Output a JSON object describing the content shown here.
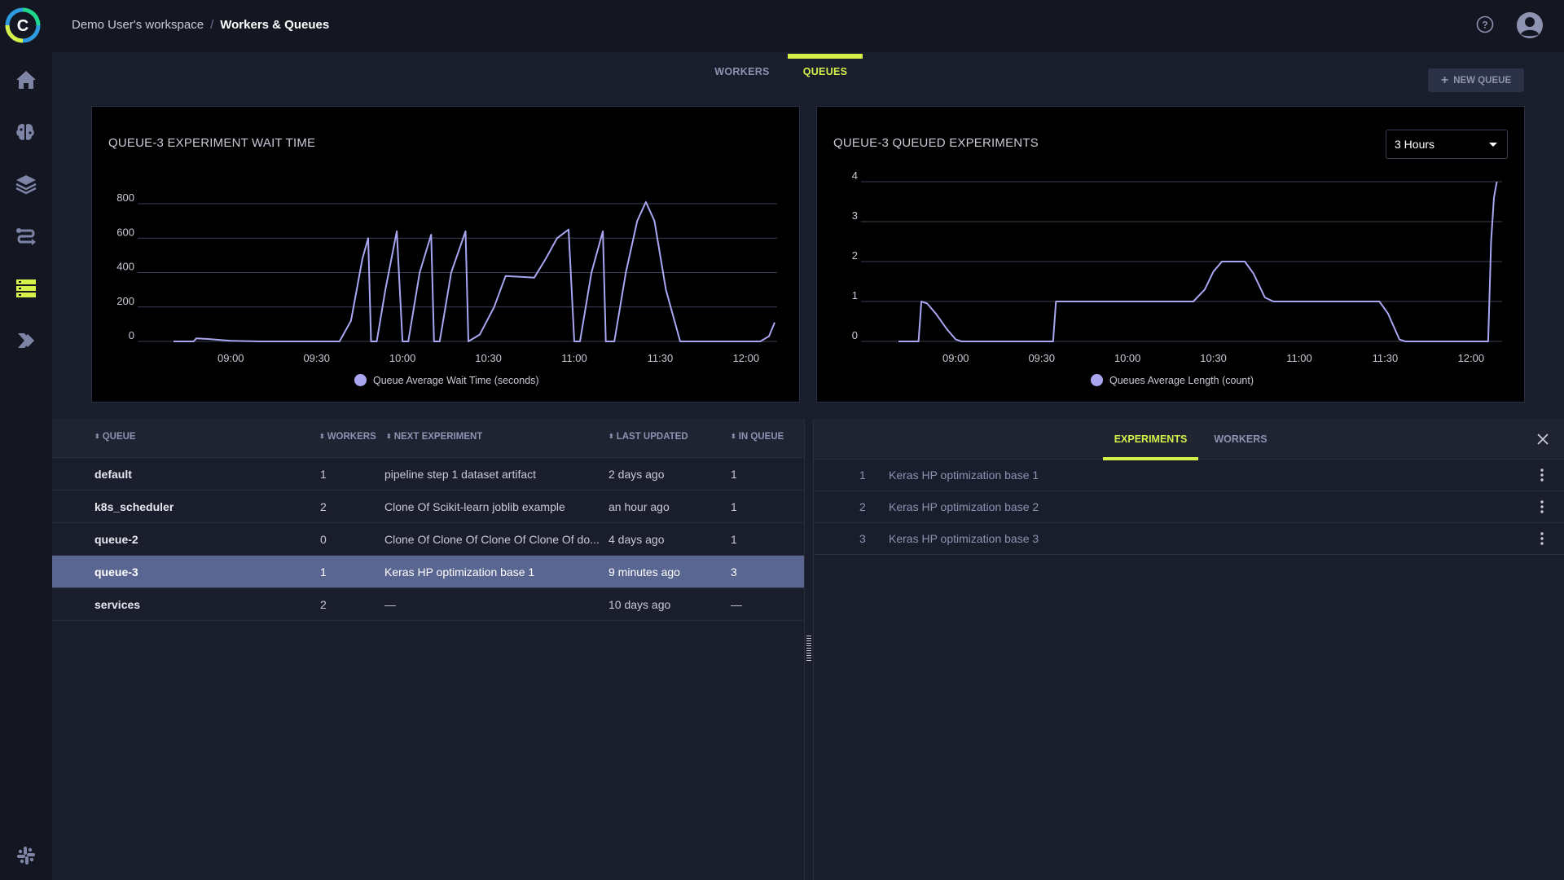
{
  "breadcrumb": {
    "workspace": "Demo User's workspace",
    "current": "Workers & Queues"
  },
  "tabs": [
    {
      "label": "WORKERS"
    },
    {
      "label": "QUEUES"
    }
  ],
  "new_queue_label": "NEW QUEUE",
  "time_range": "3 Hours",
  "colors": {
    "accent": "#d7f04a",
    "series": "#a9a6f2",
    "selected_row": "#5a6692"
  },
  "chart_data": [
    {
      "type": "line",
      "title": "QUEUE-3 EXPERIMENT WAIT TIME",
      "x_ticks": [
        "09:00",
        "09:30",
        "10:00",
        "10:30",
        "11:00",
        "11:30",
        "12:00"
      ],
      "y_ticks": [
        0,
        200,
        400,
        600,
        800
      ],
      "ylim": [
        0,
        800
      ],
      "xlim": [
        "08:40",
        "12:10"
      ],
      "grid": true,
      "legend": "bottom",
      "series": [
        {
          "name": "Queue Average Wait Time (seconds)",
          "points": [
            [
              "08:40",
              0
            ],
            [
              "08:47",
              0
            ],
            [
              "08:48",
              18
            ],
            [
              "08:52",
              14
            ],
            [
              "09:00",
              4
            ],
            [
              "09:10",
              0
            ],
            [
              "09:38",
              0
            ],
            [
              "09:42",
              120
            ],
            [
              "09:46",
              480
            ],
            [
              "09:48",
              600
            ],
            [
              "09:49",
              0
            ],
            [
              "09:51",
              0
            ],
            [
              "09:54",
              300
            ],
            [
              "09:58",
              640
            ],
            [
              "10:00",
              0
            ],
            [
              "10:02",
              0
            ],
            [
              "10:06",
              400
            ],
            [
              "10:10",
              620
            ],
            [
              "10:11",
              0
            ],
            [
              "10:13",
              0
            ],
            [
              "10:17",
              400
            ],
            [
              "10:22",
              640
            ],
            [
              "10:23",
              0
            ],
            [
              "10:27",
              40
            ],
            [
              "10:32",
              200
            ],
            [
              "10:36",
              380
            ],
            [
              "10:46",
              370
            ],
            [
              "10:50",
              480
            ],
            [
              "10:54",
              600
            ],
            [
              "10:58",
              650
            ],
            [
              "11:00",
              0
            ],
            [
              "11:02",
              0
            ],
            [
              "11:06",
              400
            ],
            [
              "11:10",
              640
            ],
            [
              "11:11",
              0
            ],
            [
              "11:14",
              0
            ],
            [
              "11:18",
              400
            ],
            [
              "11:22",
              700
            ],
            [
              "11:25",
              810
            ],
            [
              "11:28",
              700
            ],
            [
              "11:32",
              300
            ],
            [
              "11:37",
              0
            ],
            [
              "12:05",
              0
            ],
            [
              "12:08",
              30
            ],
            [
              "12:10",
              110
            ]
          ]
        }
      ]
    },
    {
      "type": "line",
      "title": "QUEUE-3 QUEUED EXPERIMENTS",
      "x_ticks": [
        "09:00",
        "09:30",
        "10:00",
        "10:30",
        "11:00",
        "11:30",
        "12:00"
      ],
      "y_ticks": [
        0,
        1,
        2,
        3,
        4
      ],
      "ylim": [
        0,
        4
      ],
      "xlim": [
        "08:40",
        "12:10"
      ],
      "grid": true,
      "legend": "bottom",
      "series": [
        {
          "name": "Queues Average Length (count)",
          "points": [
            [
              "08:40",
              0
            ],
            [
              "08:47",
              0
            ],
            [
              "08:48",
              1
            ],
            [
              "08:50",
              0.95
            ],
            [
              "08:53",
              0.7
            ],
            [
              "08:57",
              0.3
            ],
            [
              "09:00",
              0.05
            ],
            [
              "09:02",
              0
            ],
            [
              "09:34",
              0
            ],
            [
              "09:35",
              1
            ],
            [
              "10:23",
              1
            ],
            [
              "10:27",
              1.3
            ],
            [
              "10:30",
              1.75
            ],
            [
              "10:33",
              2
            ],
            [
              "10:41",
              2
            ],
            [
              "10:44",
              1.7
            ],
            [
              "10:48",
              1.1
            ],
            [
              "10:51",
              1
            ],
            [
              "11:28",
              1
            ],
            [
              "11:31",
              0.7
            ],
            [
              "11:35",
              0.05
            ],
            [
              "11:37",
              0
            ],
            [
              "12:06",
              0
            ],
            [
              "12:07",
              2.5
            ],
            [
              "12:08",
              3.6
            ],
            [
              "12:09",
              4
            ]
          ]
        }
      ]
    }
  ],
  "queue_table": {
    "headers": [
      "QUEUE",
      "WORKERS",
      "NEXT EXPERIMENT",
      "LAST UPDATED",
      "IN QUEUE"
    ],
    "rows": [
      {
        "queue": "default",
        "workers": "1",
        "next": "pipeline step 1 dataset artifact",
        "updated": "2 days ago",
        "in_queue": "1"
      },
      {
        "queue": "k8s_scheduler",
        "workers": "2",
        "next": "Clone Of Scikit-learn joblib example",
        "updated": "an hour ago",
        "in_queue": "1"
      },
      {
        "queue": "queue-2",
        "workers": "0",
        "next": "Clone Of Clone Of Clone Of Clone Of do...",
        "updated": "4 days ago",
        "in_queue": "1"
      },
      {
        "queue": "queue-3",
        "workers": "1",
        "next": "Keras HP optimization base 1",
        "updated": "9 minutes ago",
        "in_queue": "3"
      },
      {
        "queue": "services",
        "workers": "2",
        "next": "—",
        "updated": "10 days ago",
        "in_queue": "—"
      }
    ],
    "selected_index": 3
  },
  "detail_panel": {
    "tabs": [
      {
        "label": "EXPERIMENTS"
      },
      {
        "label": "WORKERS"
      }
    ],
    "experiments": [
      {
        "num": "1",
        "name": "Keras HP optimization base 1"
      },
      {
        "num": "2",
        "name": "Keras HP optimization base 2"
      },
      {
        "num": "3",
        "name": "Keras HP optimization base 3"
      }
    ]
  },
  "icons": {
    "sidebar": [
      "home-icon",
      "models-brain-icon",
      "datasets-layers-icon",
      "pipelines-icon",
      "workers-queues-icon",
      "applications-icon"
    ],
    "top": [
      "help-icon",
      "user-avatar-icon"
    ],
    "bottom": "slack-icon"
  }
}
